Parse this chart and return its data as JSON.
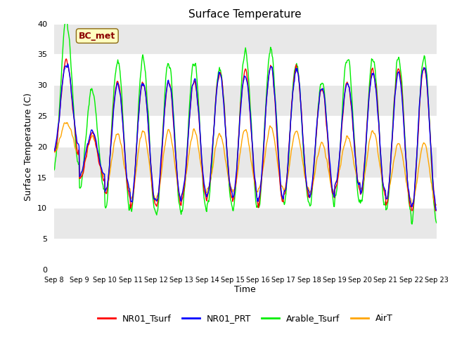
{
  "title": "Surface Temperature",
  "ylabel": "Surface Temperature (C)",
  "xlabel": "Time",
  "annotation_text": "BC_met",
  "annotation_color": "#8B0000",
  "annotation_bg": "#FFFFC0",
  "ylim": [
    0,
    40
  ],
  "yticks": [
    0,
    5,
    10,
    15,
    20,
    25,
    30,
    35,
    40
  ],
  "xtick_labels": [
    "Sep 8",
    "Sep 9",
    "Sep 10",
    "Sep 11",
    "Sep 12",
    "Sep 13",
    "Sep 14",
    "Sep 15",
    "Sep 16",
    "Sep 17",
    "Sep 18",
    "Sep 19",
    "Sep 20",
    "Sep 21",
    "Sep 22",
    "Sep 23"
  ],
  "colors": {
    "NR01_Tsurf": "#FF0000",
    "NR01_PRT": "#0000FF",
    "Arable_Tsurf": "#00EE00",
    "AirT": "#FFA500"
  },
  "bg_color": "#E8E8E8",
  "grid_color": "#FFFFFF",
  "figsize": [
    6.4,
    4.8
  ],
  "dpi": 100
}
